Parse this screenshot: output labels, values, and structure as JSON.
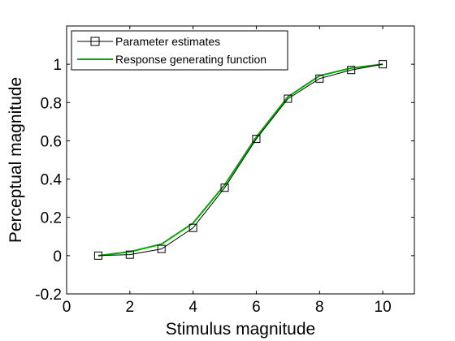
{
  "chart_data": {
    "type": "line",
    "xlabel": "Stimulus magnitude",
    "ylabel": "Perceptual magnitude",
    "xlim": [
      0,
      11
    ],
    "ylim": [
      -0.2,
      1.2
    ],
    "xticks": [
      0,
      2,
      4,
      6,
      8,
      10
    ],
    "yticks": [
      -0.2,
      0,
      0.2,
      0.4,
      0.6,
      0.8,
      1
    ],
    "x_tick_labels": [
      "0",
      "2",
      "4",
      "6",
      "8",
      "10"
    ],
    "y_tick_labels": [
      "-0.2",
      "0",
      "0.2",
      "0.4",
      "0.6",
      "0.8",
      "1"
    ],
    "grid": false,
    "legend_position": "top-left",
    "series": [
      {
        "name": "Parameter estimates",
        "color": "#000000",
        "marker": "square",
        "x": [
          1,
          2,
          3,
          4,
          5,
          6,
          7,
          8,
          9,
          10
        ],
        "y": [
          0.0,
          0.005,
          0.035,
          0.145,
          0.355,
          0.61,
          0.82,
          0.925,
          0.97,
          1.0
        ]
      },
      {
        "name": "Response generating function",
        "color": "#00aa00",
        "marker": "none",
        "x": [
          1,
          2,
          3,
          4,
          5,
          6,
          7,
          8,
          9,
          10
        ],
        "y": [
          0.0,
          0.02,
          0.06,
          0.17,
          0.37,
          0.62,
          0.83,
          0.94,
          0.98,
          1.0
        ]
      }
    ]
  }
}
